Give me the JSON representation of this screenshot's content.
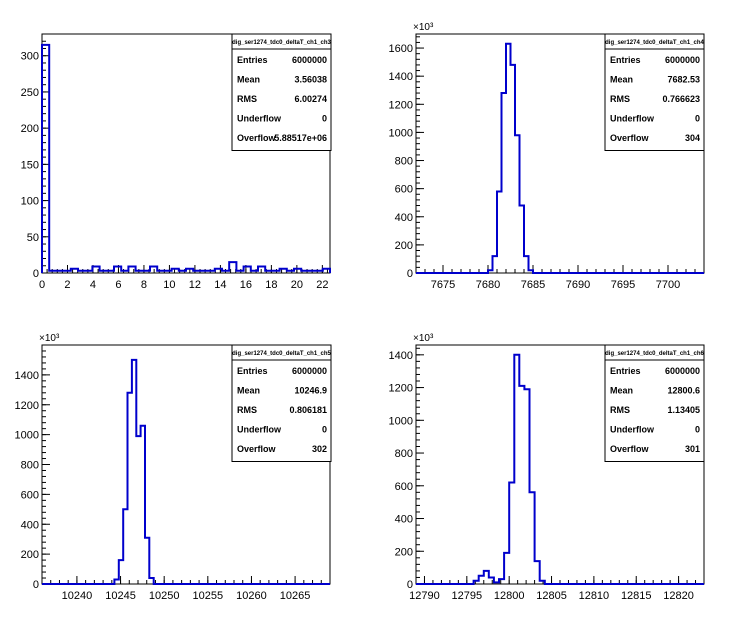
{
  "chart_data": [
    {
      "type": "histogram",
      "title": "dig_ser1274_tdc0_deltaT_ch1_ch3",
      "xlabel": "",
      "ylabel": "",
      "xlim": [
        0,
        22.6
      ],
      "ylim": [
        0,
        330
      ],
      "y_exponent": "",
      "xticks": [
        "0",
        "2",
        "4",
        "6",
        "8",
        "10",
        "12",
        "14",
        "16",
        "18",
        "20",
        "22"
      ],
      "yticks": [
        "0",
        "50",
        "100",
        "150",
        "200",
        "250",
        "300"
      ],
      "bins": {
        "start": 0,
        "width": 0.565,
        "values": [
          315,
          3,
          3,
          3,
          6,
          3,
          3,
          9,
          3,
          3,
          9,
          3,
          9,
          3,
          3,
          9,
          3,
          3,
          6,
          3,
          6,
          3,
          3,
          3,
          6,
          3,
          15,
          3,
          9,
          3,
          9,
          3,
          3,
          6,
          3,
          6,
          3,
          3,
          3,
          6
        ]
      },
      "stats": [
        {
          "label": "Entries",
          "value": "6000000"
        },
        {
          "label": "Mean",
          "value": "3.56038"
        },
        {
          "label": "RMS",
          "value": "6.00274"
        },
        {
          "label": "Underflow",
          "value": "0"
        },
        {
          "label": "Overflow",
          "value": "5.88517e+06"
        }
      ]
    },
    {
      "type": "histogram",
      "title": "dig_ser1274_tdc0_deltaT_ch1_ch4",
      "xlabel": "",
      "ylabel": "",
      "xlim": [
        7672,
        7704
      ],
      "ylim": [
        0,
        1700
      ],
      "y_exponent": "×10³",
      "xticks": [
        "7675",
        "7680",
        "7685",
        "7690",
        "7695",
        "7700"
      ],
      "yticks": [
        "0",
        "200",
        "400",
        "600",
        "800",
        "1000",
        "1200",
        "1400",
        "1600"
      ],
      "bins": {
        "start": 7680.0,
        "width": 0.5,
        "values": [
          20,
          120,
          580,
          1280,
          1630,
          1480,
          980,
          480,
          120,
          20
        ]
      },
      "stats": [
        {
          "label": "Entries",
          "value": "6000000"
        },
        {
          "label": "Mean",
          "value": "7682.53"
        },
        {
          "label": "RMS",
          "value": "0.766623"
        },
        {
          "label": "Underflow",
          "value": "0"
        },
        {
          "label": "Overflow",
          "value": "304"
        }
      ]
    },
    {
      "type": "histogram",
      "title": "dig_ser1274_tdc0_deltaT_ch1_ch5",
      "xlabel": "",
      "ylabel": "",
      "xlim": [
        10236,
        10269
      ],
      "ylim": [
        0,
        1600
      ],
      "y_exponent": "×10³",
      "xticks": [
        "10240",
        "10245",
        "10250",
        "10255",
        "10260",
        "10265"
      ],
      "yticks": [
        "0",
        "200",
        "400",
        "600",
        "800",
        "1000",
        "1200",
        "1400"
      ],
      "bins": {
        "start": 10244.3,
        "width": 0.5,
        "values": [
          30,
          160,
          500,
          1280,
          1500,
          990,
          1060,
          310,
          40
        ]
      },
      "stats": [
        {
          "label": "Entries",
          "value": "6000000"
        },
        {
          "label": "Mean",
          "value": "10246.9"
        },
        {
          "label": "RMS",
          "value": "0.806181"
        },
        {
          "label": "Underflow",
          "value": "0"
        },
        {
          "label": "Overflow",
          "value": "302"
        }
      ]
    },
    {
      "type": "histogram",
      "title": "dig_ser1274_tdc0_deltaT_ch1_ch6",
      "xlabel": "",
      "ylabel": "",
      "xlim": [
        12789,
        12823
      ],
      "ylim": [
        0,
        1460
      ],
      "y_exponent": "×10³",
      "xticks": [
        "12790",
        "12795",
        "12800",
        "12805",
        "12810",
        "12815",
        "12820"
      ],
      "yticks": [
        "0",
        "200",
        "400",
        "600",
        "800",
        "1000",
        "1200",
        "1400"
      ],
      "bins": {
        "start": 12795.8,
        "width": 0.6,
        "values": [
          20,
          50,
          80,
          40,
          10,
          30,
          190,
          620,
          1400,
          1210,
          1190,
          560,
          140,
          20
        ]
      },
      "stats": [
        {
          "label": "Entries",
          "value": "6000000"
        },
        {
          "label": "Mean",
          "value": "12800.6"
        },
        {
          "label": "RMS",
          "value": "1.13405"
        },
        {
          "label": "Underflow",
          "value": "0"
        },
        {
          "label": "Overflow",
          "value": "301"
        }
      ]
    }
  ],
  "colors": {
    "histogram_line": "#0000cc",
    "axis": "#000000",
    "background": "#ffffff"
  }
}
